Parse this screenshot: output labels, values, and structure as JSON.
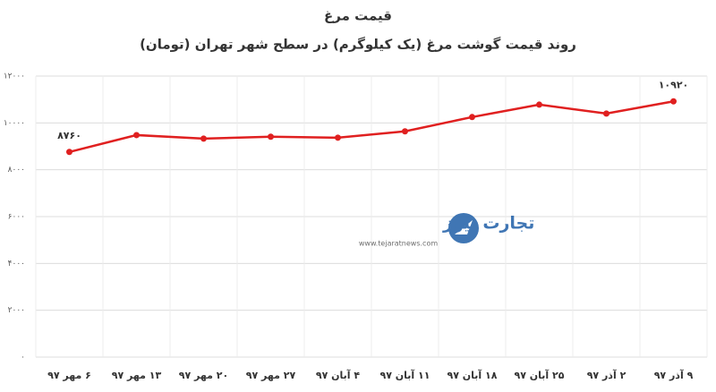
{
  "chart_data": {
    "type": "line",
    "title": "قیمت مرغ",
    "subtitle": "روند قیمت گوشت مرغ (یک کیلوگرم) در سطح شهر تهران (تومان)",
    "categories": [
      "۶ مهر ۹۷",
      "۱۳ مهر ۹۷",
      "۲۰ مهر ۹۷",
      "۲۷ مهر ۹۷",
      "۴ آبان ۹۷",
      "۱۱ آبان ۹۷",
      "۱۸ آبان ۹۷",
      "۲۵ آبان ۹۷",
      "۲ آذر ۹۷",
      "۹ آذر ۹۷"
    ],
    "values": [
      8760,
      9480,
      9330,
      9410,
      9370,
      9640,
      10250,
      10780,
      10400,
      10920
    ],
    "value_labels": [
      "۸۷۶۰",
      null,
      null,
      null,
      null,
      null,
      null,
      null,
      null,
      "۱۰۹۲۰"
    ],
    "color": "#e02020",
    "ylim": [
      0,
      12000
    ],
    "yticks": [
      {
        "value": 0,
        "label": "۰"
      },
      {
        "value": 2000,
        "label": "۲۰۰۰"
      },
      {
        "value": 4000,
        "label": "۴۰۰۰"
      },
      {
        "value": 6000,
        "label": "۶۰۰۰"
      },
      {
        "value": 8000,
        "label": "۸۰۰۰"
      },
      {
        "value": 10000,
        "label": "۱۰۰۰۰"
      },
      {
        "value": 12000,
        "label": "۱۲۰۰۰"
      }
    ],
    "grid": true,
    "watermark": {
      "name": "تجارت نیوز",
      "url": "www.tejaratnews.com"
    }
  }
}
